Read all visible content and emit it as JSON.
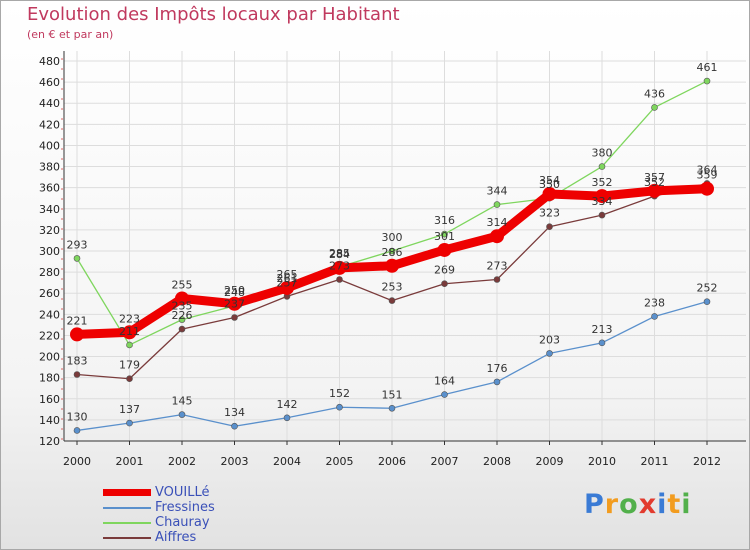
{
  "header": {
    "title": "Evolution des Impôts locaux par Habitant",
    "subtitle": "(en € et par an)"
  },
  "brand": {
    "letters": [
      "P",
      "r",
      "o",
      "x",
      "i",
      "t",
      "i"
    ],
    "colors": [
      "#3a7bd5",
      "#f29c1f",
      "#52b04b",
      "#e23b2e",
      "#3a7bd5",
      "#f29c1f",
      "#52b04b"
    ]
  },
  "chart_data": {
    "type": "line",
    "title": "Evolution des Impôts locaux par Habitant",
    "ylabel": "(en € et par an)",
    "xlabel": "",
    "ylim": [
      120,
      480
    ],
    "yticks": [
      120,
      140,
      160,
      180,
      200,
      220,
      240,
      260,
      280,
      300,
      320,
      340,
      360,
      380,
      400,
      420,
      440,
      460,
      480
    ],
    "categories": [
      "2000",
      "2001",
      "2002",
      "2003",
      "2004",
      "2005",
      "2006",
      "2007",
      "2008",
      "2009",
      "2010",
      "2011",
      "2012"
    ],
    "grid": true,
    "legend_position": "bottom-left",
    "series": [
      {
        "name": "VOUILLé",
        "color": "#ee0000",
        "values": [
          221,
          223,
          255,
          250,
          265,
          284,
          286,
          301,
          314,
          354,
          352,
          357,
          359
        ]
      },
      {
        "name": "Fressines",
        "color": "#5a90cc",
        "values": [
          130,
          137,
          145,
          134,
          142,
          152,
          151,
          164,
          176,
          203,
          213,
          238,
          252
        ]
      },
      {
        "name": "Chauray",
        "color": "#7fd65e",
        "values": [
          293,
          211,
          235,
          248,
          261,
          285,
          300,
          316,
          344,
          350,
          380,
          436,
          461
        ]
      },
      {
        "name": "Aiffres",
        "color": "#7a3b3b",
        "values": [
          183,
          179,
          226,
          237,
          257,
          273,
          253,
          269,
          273,
          323,
          334,
          352,
          364
        ]
      }
    ]
  }
}
